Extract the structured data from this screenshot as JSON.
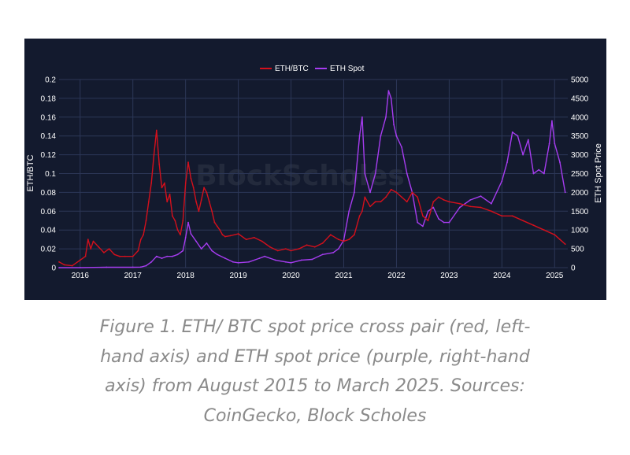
{
  "caption": "Figure 1. ETH/ BTC spot price cross pair (red, left-hand axis) and ETH spot price (purple, right-hand axis) from August 2015 to March 2025. Sources: CoinGecko, Block Scholes",
  "watermark": "BlockScholes",
  "colors": {
    "background": "#131a2e",
    "eth_btc": "#d4101c",
    "eth_spot": "#a63cf0",
    "grid": "#2c3757"
  },
  "chart_data": {
    "type": "line",
    "legend_placement": "top-center",
    "grid": true,
    "xlim": [
      2015.6,
      2025.25
    ],
    "x_ticks": [
      "2016",
      "2017",
      "2018",
      "2019",
      "2020",
      "2021",
      "2022",
      "2023",
      "2024",
      "2025"
    ],
    "y_left": {
      "label": "ETH/BTC",
      "lim": [
        0,
        0.2
      ],
      "ticks": [
        "0",
        "0.02",
        "0.04",
        "0.06",
        "0.08",
        "0.1",
        "0.12",
        "0.14",
        "0.16",
        "0.18",
        "0.2"
      ]
    },
    "y_right": {
      "label": "ETH Spot Price",
      "lim": [
        0,
        5000
      ],
      "ticks": [
        "0",
        "500",
        "1000",
        "1500",
        "2000",
        "2500",
        "3000",
        "3500",
        "4000",
        "4500",
        "5000"
      ]
    },
    "series": [
      {
        "name": "ETH/BTC",
        "axis": "left",
        "x": [
          2015.6,
          2015.7,
          2015.85,
          2016.0,
          2016.1,
          2016.15,
          2016.2,
          2016.25,
          2016.35,
          2016.45,
          2016.55,
          2016.65,
          2016.75,
          2016.85,
          2017.0,
          2017.1,
          2017.15,
          2017.2,
          2017.25,
          2017.3,
          2017.35,
          2017.4,
          2017.45,
          2017.5,
          2017.55,
          2017.6,
          2017.65,
          2017.7,
          2017.75,
          2017.8,
          2017.85,
          2017.9,
          2017.95,
          2018.0,
          2018.05,
          2018.1,
          2018.15,
          2018.2,
          2018.25,
          2018.3,
          2018.35,
          2018.4,
          2018.45,
          2018.5,
          2018.55,
          2018.6,
          2018.65,
          2018.7,
          2018.75,
          2018.85,
          2019.0,
          2019.15,
          2019.3,
          2019.45,
          2019.6,
          2019.75,
          2019.9,
          2020.0,
          2020.15,
          2020.3,
          2020.45,
          2020.6,
          2020.75,
          2020.9,
          2021.0,
          2021.1,
          2021.2,
          2021.3,
          2021.35,
          2021.4,
          2021.5,
          2021.6,
          2021.7,
          2021.8,
          2021.9,
          2022.0,
          2022.1,
          2022.2,
          2022.3,
          2022.4,
          2022.5,
          2022.6,
          2022.7,
          2022.8,
          2022.9,
          2023.0,
          2023.2,
          2023.4,
          2023.6,
          2023.8,
          2024.0,
          2024.2,
          2024.4,
          2024.6,
          2024.8,
          2025.0,
          2025.1,
          2025.2
        ],
        "values": [
          0.006,
          0.003,
          0.002,
          0.008,
          0.012,
          0.03,
          0.02,
          0.028,
          0.022,
          0.016,
          0.02,
          0.014,
          0.012,
          0.012,
          0.012,
          0.018,
          0.03,
          0.035,
          0.05,
          0.07,
          0.09,
          0.12,
          0.146,
          0.11,
          0.085,
          0.09,
          0.07,
          0.078,
          0.055,
          0.05,
          0.04,
          0.035,
          0.05,
          0.09,
          0.112,
          0.095,
          0.085,
          0.07,
          0.06,
          0.072,
          0.085,
          0.08,
          0.07,
          0.06,
          0.048,
          0.044,
          0.04,
          0.035,
          0.033,
          0.034,
          0.036,
          0.03,
          0.032,
          0.028,
          0.022,
          0.018,
          0.02,
          0.018,
          0.02,
          0.024,
          0.022,
          0.026,
          0.035,
          0.03,
          0.028,
          0.03,
          0.035,
          0.055,
          0.06,
          0.075,
          0.065,
          0.07,
          0.07,
          0.075,
          0.083,
          0.08,
          0.075,
          0.07,
          0.08,
          0.075,
          0.055,
          0.05,
          0.07,
          0.075,
          0.072,
          0.07,
          0.068,
          0.065,
          0.064,
          0.06,
          0.055,
          0.055,
          0.05,
          0.045,
          0.04,
          0.035,
          0.03,
          0.025
        ]
      },
      {
        "name": "ETH Spot",
        "axis": "right",
        "x": [
          2015.6,
          2016.0,
          2016.5,
          2017.0,
          2017.15,
          2017.25,
          2017.35,
          2017.45,
          2017.55,
          2017.65,
          2017.75,
          2017.85,
          2017.95,
          2018.0,
          2018.05,
          2018.1,
          2018.2,
          2018.3,
          2018.4,
          2018.5,
          2018.6,
          2018.75,
          2018.9,
          2019.0,
          2019.2,
          2019.4,
          2019.5,
          2019.7,
          2019.9,
          2020.0,
          2020.2,
          2020.4,
          2020.6,
          2020.8,
          2020.9,
          2021.0,
          2021.1,
          2021.2,
          2021.3,
          2021.35,
          2021.4,
          2021.5,
          2021.6,
          2021.7,
          2021.8,
          2021.85,
          2021.9,
          2021.95,
          2022.0,
          2022.1,
          2022.2,
          2022.3,
          2022.4,
          2022.5,
          2022.6,
          2022.7,
          2022.8,
          2022.9,
          2023.0,
          2023.2,
          2023.4,
          2023.6,
          2023.8,
          2024.0,
          2024.1,
          2024.2,
          2024.3,
          2024.4,
          2024.5,
          2024.6,
          2024.7,
          2024.8,
          2024.9,
          2024.95,
          2025.0,
          2025.1,
          2025.2
        ],
        "values": [
          0,
          1,
          10,
          10,
          15,
          50,
          150,
          300,
          250,
          300,
          300,
          350,
          450,
          800,
          1200,
          900,
          700,
          500,
          650,
          450,
          350,
          250,
          150,
          130,
          150,
          250,
          300,
          200,
          150,
          130,
          200,
          220,
          350,
          400,
          500,
          730,
          1500,
          2000,
          3500,
          4000,
          2500,
          2000,
          2500,
          3500,
          4000,
          4700,
          4500,
          3800,
          3500,
          3200,
          2500,
          2000,
          1200,
          1100,
          1500,
          1600,
          1300,
          1200,
          1200,
          1600,
          1800,
          1900,
          1700,
          2300,
          2800,
          3600,
          3500,
          3000,
          3400,
          2500,
          2600,
          2500,
          3300,
          3900,
          3300,
          2800,
          2000
        ]
      }
    ]
  }
}
